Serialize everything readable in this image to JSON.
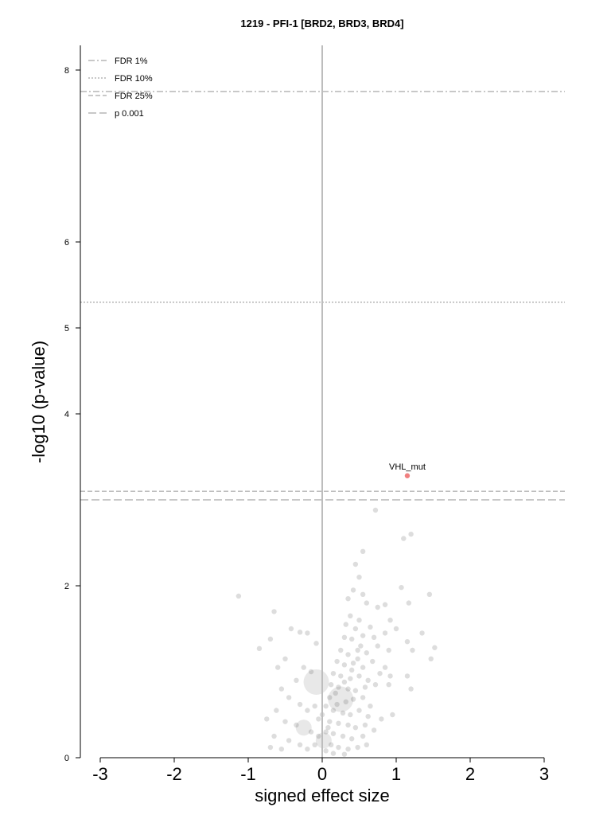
{
  "chart_data": {
    "type": "scatter",
    "title": "1219 - PFI-1 [BRD2, BRD3, BRD4]",
    "xlabel": "signed effect size",
    "ylabel": "-log10 (p-value)",
    "xlim": [
      -3.3,
      3.3
    ],
    "ylim": [
      0,
      8.3
    ],
    "xticks": [
      -3,
      -2,
      -1,
      0,
      1,
      2,
      3
    ],
    "yticks": [
      0,
      2,
      4,
      5,
      6,
      8
    ],
    "grid": false,
    "legend_position": "top-left",
    "thresholds": [
      {
        "label": "FDR 1%",
        "y": 7.75,
        "style": "dashdot"
      },
      {
        "label": "FDR 10%",
        "y": 5.3,
        "style": "dotted"
      },
      {
        "label": "FDR 25%",
        "y": 3.1,
        "style": "dashed"
      },
      {
        "label": "p 0.001",
        "y": 3.0,
        "style": "longdash"
      }
    ],
    "highlighted": [
      {
        "label": "VHL_mut",
        "x": 1.15,
        "y": 3.28,
        "color": "#f08080"
      }
    ],
    "points": [
      {
        "x": -1.13,
        "y": 1.88
      },
      {
        "x": -0.65,
        "y": 1.7
      },
      {
        "x": -0.42,
        "y": 1.5
      },
      {
        "x": -0.3,
        "y": 1.46
      },
      {
        "x": -0.2,
        "y": 1.45
      },
      {
        "x": -0.7,
        "y": 1.38
      },
      {
        "x": -0.08,
        "y": 1.33
      },
      {
        "x": -0.85,
        "y": 1.27
      },
      {
        "x": -0.5,
        "y": 1.15
      },
      {
        "x": -0.6,
        "y": 1.05
      },
      {
        "x": -0.25,
        "y": 1.05
      },
      {
        "x": -0.15,
        "y": 1.0
      },
      {
        "x": -0.08,
        "y": 0.88,
        "s": 16
      },
      {
        "x": -0.35,
        "y": 0.9
      },
      {
        "x": -0.55,
        "y": 0.8
      },
      {
        "x": -0.45,
        "y": 0.7
      },
      {
        "x": -0.3,
        "y": 0.62
      },
      {
        "x": -0.2,
        "y": 0.55
      },
      {
        "x": -0.62,
        "y": 0.55
      },
      {
        "x": -0.75,
        "y": 0.45
      },
      {
        "x": -0.5,
        "y": 0.42
      },
      {
        "x": -0.35,
        "y": 0.38
      },
      {
        "x": -0.25,
        "y": 0.35,
        "s": 10
      },
      {
        "x": -0.15,
        "y": 0.3
      },
      {
        "x": -0.65,
        "y": 0.25
      },
      {
        "x": -0.45,
        "y": 0.2
      },
      {
        "x": -0.3,
        "y": 0.15
      },
      {
        "x": -0.7,
        "y": 0.12
      },
      {
        "x": -0.2,
        "y": 0.1
      },
      {
        "x": -0.55,
        "y": 0.1
      },
      {
        "x": -0.1,
        "y": 0.6
      },
      {
        "x": -0.05,
        "y": 0.45
      },
      {
        "x": -0.05,
        "y": 0.25
      },
      {
        "x": -0.1,
        "y": 0.15
      },
      {
        "x": 0.72,
        "y": 2.88
      },
      {
        "x": 1.1,
        "y": 2.55
      },
      {
        "x": 1.2,
        "y": 2.6
      },
      {
        "x": 0.55,
        "y": 2.4
      },
      {
        "x": 0.45,
        "y": 2.25
      },
      {
        "x": 0.5,
        "y": 2.1
      },
      {
        "x": 0.42,
        "y": 1.95
      },
      {
        "x": 0.55,
        "y": 1.9
      },
      {
        "x": 1.07,
        "y": 1.98
      },
      {
        "x": 0.35,
        "y": 1.85
      },
      {
        "x": 0.6,
        "y": 1.8
      },
      {
        "x": 0.75,
        "y": 1.75
      },
      {
        "x": 0.85,
        "y": 1.78
      },
      {
        "x": 1.17,
        "y": 1.8
      },
      {
        "x": 1.45,
        "y": 1.9
      },
      {
        "x": 0.38,
        "y": 1.65
      },
      {
        "x": 0.5,
        "y": 1.6
      },
      {
        "x": 0.45,
        "y": 1.5
      },
      {
        "x": 0.32,
        "y": 1.55
      },
      {
        "x": 0.65,
        "y": 1.52
      },
      {
        "x": 0.92,
        "y": 1.6
      },
      {
        "x": 0.3,
        "y": 1.4
      },
      {
        "x": 0.4,
        "y": 1.38
      },
      {
        "x": 0.55,
        "y": 1.42
      },
      {
        "x": 0.7,
        "y": 1.4
      },
      {
        "x": 0.85,
        "y": 1.45
      },
      {
        "x": 1.0,
        "y": 1.5
      },
      {
        "x": 1.15,
        "y": 1.35
      },
      {
        "x": 1.35,
        "y": 1.45
      },
      {
        "x": 1.52,
        "y": 1.28
      },
      {
        "x": 0.25,
        "y": 1.25
      },
      {
        "x": 0.35,
        "y": 1.2
      },
      {
        "x": 0.48,
        "y": 1.25
      },
      {
        "x": 0.6,
        "y": 1.22
      },
      {
        "x": 0.75,
        "y": 1.3
      },
      {
        "x": 0.9,
        "y": 1.25
      },
      {
        "x": 1.22,
        "y": 1.25
      },
      {
        "x": 0.2,
        "y": 1.12
      },
      {
        "x": 0.3,
        "y": 1.08
      },
      {
        "x": 0.42,
        "y": 1.1
      },
      {
        "x": 0.55,
        "y": 1.05
      },
      {
        "x": 0.68,
        "y": 1.12
      },
      {
        "x": 0.85,
        "y": 1.05
      },
      {
        "x": 1.47,
        "y": 1.15
      },
      {
        "x": 0.15,
        "y": 0.98
      },
      {
        "x": 0.25,
        "y": 0.95
      },
      {
        "x": 0.38,
        "y": 0.92
      },
      {
        "x": 0.5,
        "y": 0.95
      },
      {
        "x": 0.62,
        "y": 0.9
      },
      {
        "x": 0.78,
        "y": 0.98
      },
      {
        "x": 0.92,
        "y": 0.95
      },
      {
        "x": 1.15,
        "y": 0.95
      },
      {
        "x": 0.12,
        "y": 0.85
      },
      {
        "x": 0.22,
        "y": 0.82
      },
      {
        "x": 0.35,
        "y": 0.8
      },
      {
        "x": 0.45,
        "y": 0.78
      },
      {
        "x": 0.58,
        "y": 0.82
      },
      {
        "x": 0.72,
        "y": 0.85
      },
      {
        "x": 0.9,
        "y": 0.85
      },
      {
        "x": 1.2,
        "y": 0.8
      },
      {
        "x": 0.25,
        "y": 0.68,
        "s": 16
      },
      {
        "x": 0.1,
        "y": 0.7
      },
      {
        "x": 0.2,
        "y": 0.62
      },
      {
        "x": 0.32,
        "y": 0.65
      },
      {
        "x": 0.42,
        "y": 0.68
      },
      {
        "x": 0.55,
        "y": 0.7
      },
      {
        "x": 0.65,
        "y": 0.6
      },
      {
        "x": 0.15,
        "y": 0.55
      },
      {
        "x": 0.28,
        "y": 0.52
      },
      {
        "x": 0.38,
        "y": 0.5
      },
      {
        "x": 0.5,
        "y": 0.55
      },
      {
        "x": 0.62,
        "y": 0.48
      },
      {
        "x": 0.8,
        "y": 0.45
      },
      {
        "x": 0.95,
        "y": 0.5
      },
      {
        "x": 0.1,
        "y": 0.42
      },
      {
        "x": 0.22,
        "y": 0.4
      },
      {
        "x": 0.35,
        "y": 0.38
      },
      {
        "x": 0.45,
        "y": 0.35
      },
      {
        "x": 0.58,
        "y": 0.38
      },
      {
        "x": 0.7,
        "y": 0.32
      },
      {
        "x": 0.05,
        "y": 0.3
      },
      {
        "x": 0.15,
        "y": 0.28
      },
      {
        "x": 0.28,
        "y": 0.25
      },
      {
        "x": 0.4,
        "y": 0.22
      },
      {
        "x": 0.55,
        "y": 0.25
      },
      {
        "x": 0.02,
        "y": 0.2,
        "s": 10
      },
      {
        "x": 0.12,
        "y": 0.15
      },
      {
        "x": 0.22,
        "y": 0.12
      },
      {
        "x": 0.35,
        "y": 0.1
      },
      {
        "x": 0.48,
        "y": 0.12
      },
      {
        "x": 0.6,
        "y": 0.15
      },
      {
        "x": 0.05,
        "y": 0.08
      },
      {
        "x": 0.15,
        "y": 0.05
      },
      {
        "x": 0.3,
        "y": 0.04
      },
      {
        "x": 0.0,
        "y": 0.5
      },
      {
        "x": 0.05,
        "y": 0.6
      },
      {
        "x": 0.08,
        "y": 0.35
      },
      {
        "x": 0.18,
        "y": 0.75
      },
      {
        "x": 0.3,
        "y": 0.88
      },
      {
        "x": 0.4,
        "y": 1.02
      },
      {
        "x": 0.48,
        "y": 1.15
      },
      {
        "x": 0.52,
        "y": 1.3
      }
    ]
  }
}
